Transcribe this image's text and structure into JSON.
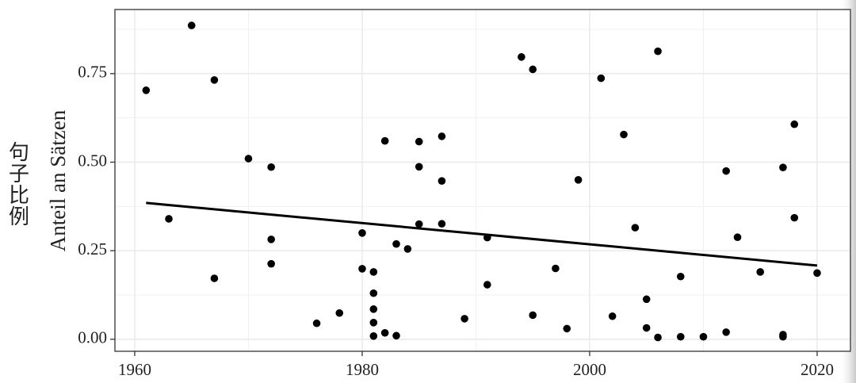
{
  "chart_data": {
    "type": "scatter",
    "y_label": "Anteil an Sätzen",
    "annotation": "句子比例",
    "annotation_color": "#e8343c",
    "x": [
      1961,
      1963,
      1965,
      1967,
      1967,
      1970,
      1972,
      1972,
      1972,
      1976,
      1978,
      1980,
      1980,
      1981,
      1981,
      1981,
      1981,
      1981,
      1982,
      1982,
      1983,
      1983,
      1984,
      1985,
      1985,
      1985,
      1987,
      1987,
      1987,
      1989,
      1991,
      1991,
      1994,
      1995,
      1995,
      1997,
      1998,
      1999,
      2001,
      2002,
      2003,
      2004,
      2005,
      2005,
      2006,
      2006,
      2008,
      2008,
      2010,
      2012,
      2012,
      2013,
      2015,
      2017,
      2017,
      2017,
      2018,
      2018,
      2020
    ],
    "values": [
      0.703,
      0.34,
      0.886,
      0.732,
      0.172,
      0.51,
      0.486,
      0.282,
      0.213,
      0.045,
      0.074,
      0.3,
      0.199,
      0.19,
      0.13,
      0.085,
      0.047,
      0.009,
      0.56,
      0.018,
      0.269,
      0.01,
      0.255,
      0.558,
      0.487,
      0.325,
      0.573,
      0.447,
      0.326,
      0.058,
      0.287,
      0.154,
      0.797,
      0.762,
      0.068,
      0.2,
      0.03,
      0.45,
      0.737,
      0.065,
      0.578,
      0.315,
      0.113,
      0.032,
      0.813,
      0.005,
      0.177,
      0.007,
      0.007,
      0.475,
      0.02,
      0.288,
      0.19,
      0.485,
      0.013,
      0.007,
      0.607,
      0.343,
      0.187
    ],
    "color": "#000000",
    "trend_line": {
      "x": [
        1961,
        2020
      ],
      "values": [
        0.385,
        0.208
      ],
      "color": "#000000"
    },
    "xlim": [
      1958.26,
      2022.93
    ],
    "ylim": [
      -0.034,
      0.931
    ],
    "xticks": [
      1960,
      1980,
      2000,
      2020
    ],
    "yticks": [
      {
        "value": 0,
        "label": "0.00"
      },
      0.25,
      {
        "value": 0.5,
        "label": "0.50"
      },
      0.75
    ],
    "grid": true
  }
}
